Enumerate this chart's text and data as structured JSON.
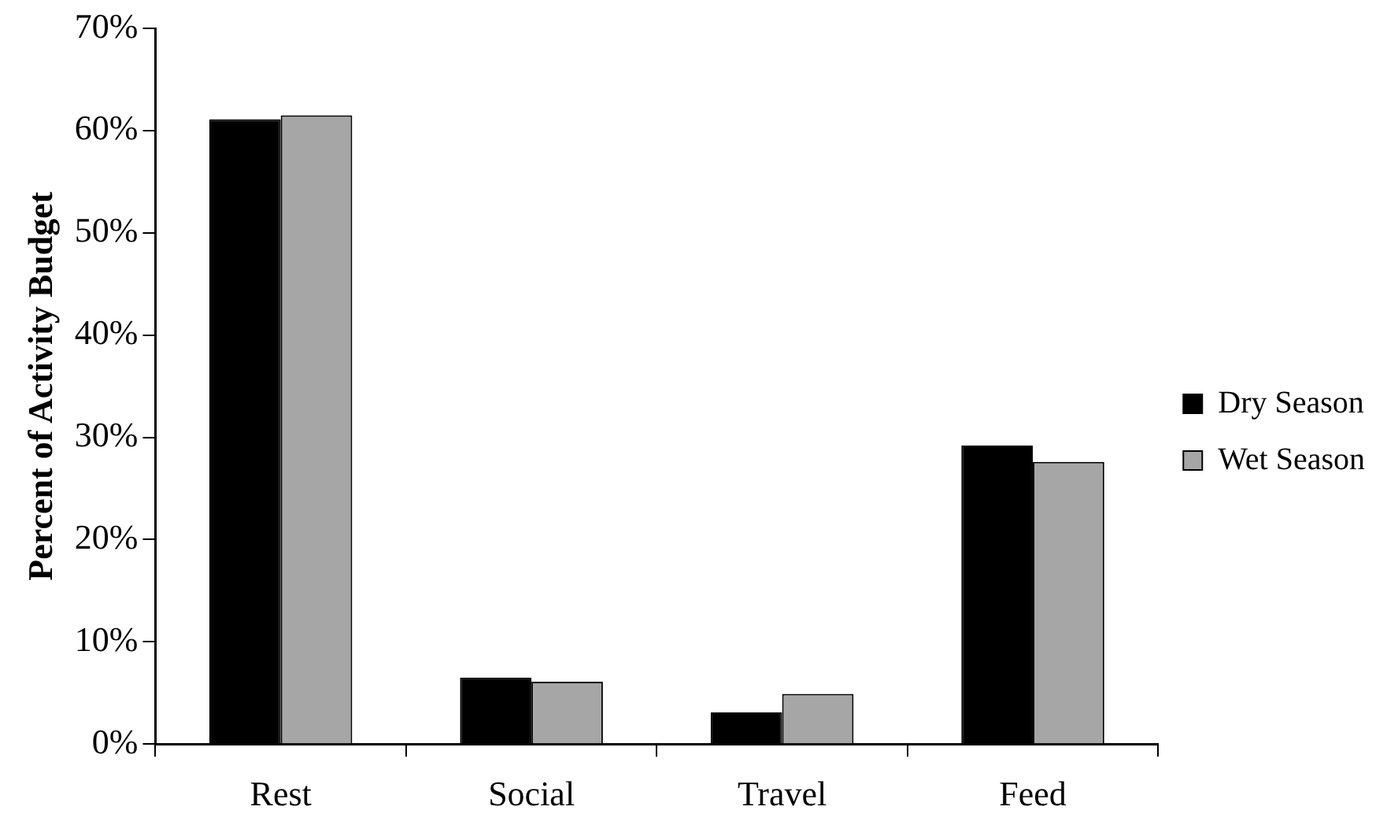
{
  "chart_data": {
    "type": "bar",
    "ylabel": "Percent of Activity Budget",
    "categories": [
      "Rest",
      "Social",
      "Travel",
      "Feed"
    ],
    "series": [
      {
        "name": "Dry Season",
        "color": "#000000",
        "values": [
          61.1,
          6.5,
          3.1,
          29.2
        ]
      },
      {
        "name": "Wet Season",
        "color": "#a6a6a6",
        "values": [
          61.5,
          6.1,
          4.9,
          27.6
        ]
      }
    ],
    "ylim": [
      0,
      70
    ],
    "yticks": [
      {
        "value": 0,
        "label": "0%"
      },
      {
        "value": 10,
        "label": "10%"
      },
      {
        "value": 20,
        "label": "20%"
      },
      {
        "value": 30,
        "label": "30%"
      },
      {
        "value": 40,
        "label": "40%"
      },
      {
        "value": 50,
        "label": "50%"
      },
      {
        "value": 60,
        "label": "60%"
      },
      {
        "value": 70,
        "label": "70%"
      }
    ],
    "grid": false,
    "legend": "right"
  }
}
